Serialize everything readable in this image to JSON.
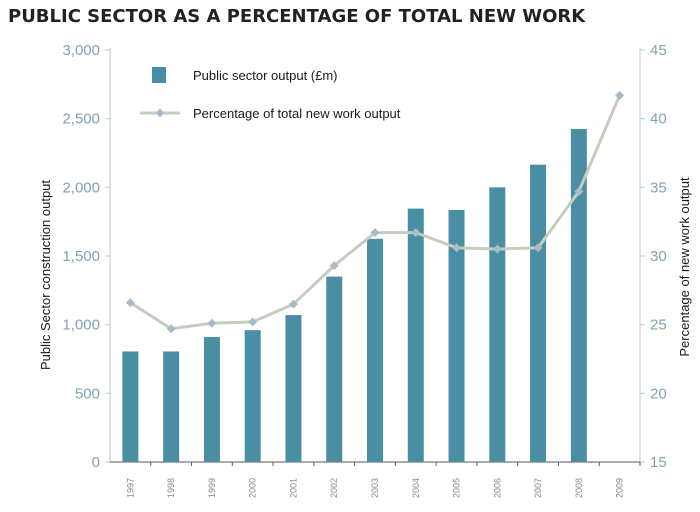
{
  "chart_data": {
    "type": "bar",
    "title": "PUBLIC SECTOR AS A PERCENTAGE OF TOTAL NEW WORK",
    "categories": [
      "1997",
      "1998",
      "1999",
      "2000",
      "2001",
      "2002",
      "2003",
      "2004",
      "2005",
      "2006",
      "2007",
      "2008",
      "2009"
    ],
    "series": [
      {
        "name": "Public sector output (£m)",
        "type": "bar",
        "axis": "left",
        "color": "#4a8ea3",
        "values": [
          805,
          805,
          910,
          960,
          1070,
          1350,
          1625,
          1845,
          1835,
          2000,
          2165,
          2425,
          null
        ]
      },
      {
        "name": "Percentage of total new work output",
        "type": "line",
        "axis": "right",
        "color": "#c6cdbd",
        "marker_color": "#a9bcc6",
        "values": [
          26.6,
          24.7,
          25.1,
          25.2,
          26.5,
          29.3,
          31.7,
          31.7,
          30.6,
          30.5,
          30.6,
          34.7,
          41.7
        ]
      }
    ],
    "ylabel": "Public Sector construction output",
    "ylabel_right": "Percentage of new work output",
    "ylim": [
      0,
      3000
    ],
    "ylim_right": [
      15,
      45
    ],
    "yticks": [
      0,
      500,
      1000,
      1500,
      2000,
      2500,
      3000
    ],
    "yticks_right": [
      15,
      20,
      25,
      30,
      35,
      40,
      45
    ],
    "ytick_labels": [
      "0",
      "500",
      "1,000",
      "1,500",
      "2,000",
      "2,500",
      "3,000"
    ],
    "ytick_labels_right": [
      "15",
      "20",
      "25",
      "30",
      "35",
      "40",
      "45"
    ],
    "legend": "top-left",
    "grid": false
  }
}
